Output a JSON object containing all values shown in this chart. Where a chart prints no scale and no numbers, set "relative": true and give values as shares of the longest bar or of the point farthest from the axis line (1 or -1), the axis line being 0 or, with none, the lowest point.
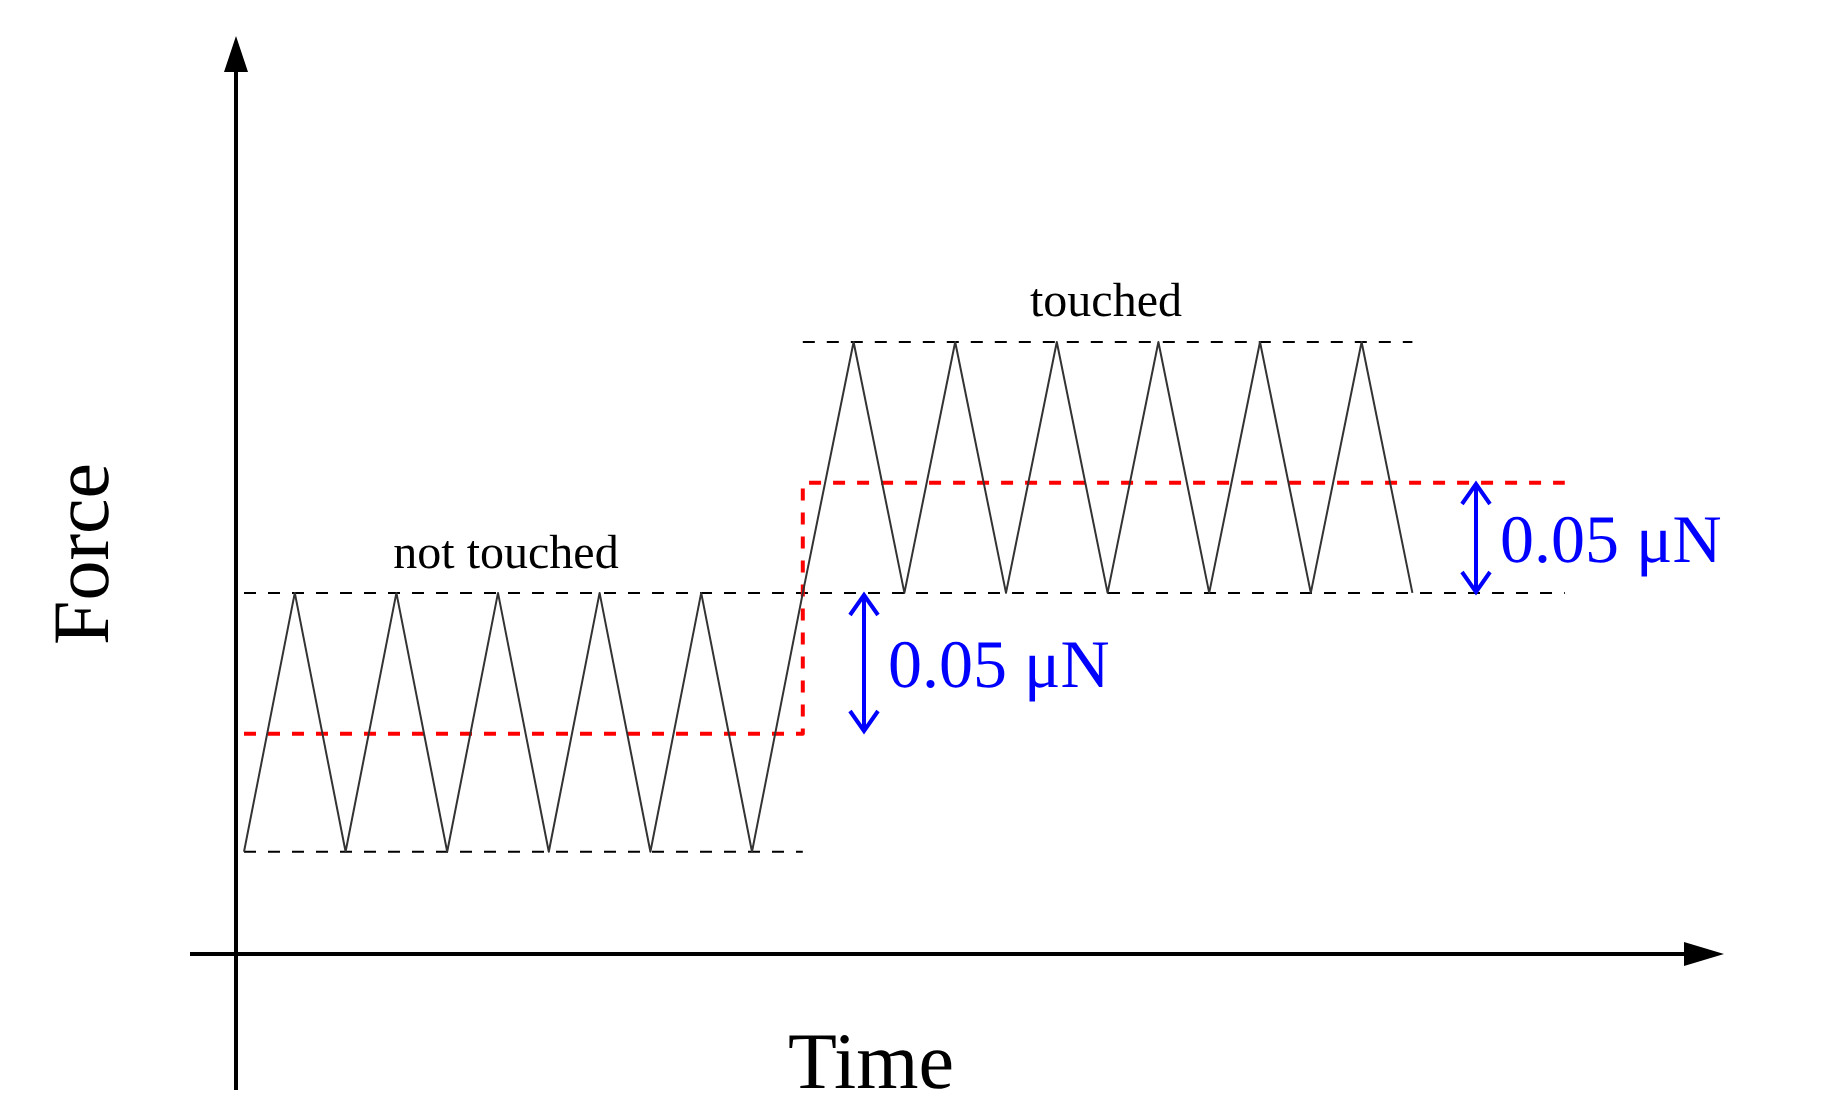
{
  "chart_data": {
    "type": "line",
    "relative": true,
    "xlabel": "Time",
    "ylabel": "Force",
    "categories": [
      null,
      null,
      null,
      null,
      null,
      null,
      null,
      null,
      null,
      null,
      null,
      null,
      null,
      null,
      null,
      null,
      null,
      null,
      null,
      null,
      null,
      null,
      null,
      null,
      null,
      null,
      null,
      null,
      null,
      null
    ],
    "series": [
      {
        "color": "#000000",
        "line_style": "dashed",
        "values": [
          0.167,
          0.167,
          0.167,
          0.167,
          0.167,
          0.167,
          0.167,
          0.167,
          0.167,
          0.167,
          0.167,
          0.167,
          null,
          null,
          null,
          null,
          null,
          null,
          null,
          null,
          null,
          null,
          null,
          null,
          null,
          null,
          null,
          null,
          null,
          null
        ]
      },
      {
        "color": "#000000",
        "line_style": "dashed",
        "values": [
          0.59,
          0.59,
          0.59,
          0.59,
          0.59,
          0.59,
          0.59,
          0.59,
          0.59,
          0.59,
          0.59,
          0.59,
          0.59,
          0.59,
          0.59,
          0.59,
          0.59,
          0.59,
          0.59,
          0.59,
          0.59,
          0.59,
          0.59,
          0.59,
          0.59,
          0.59,
          0.59,
          null,
          null,
          null
        ]
      },
      {
        "color": "#000000",
        "line_style": "dashed",
        "values": [
          null,
          null,
          null,
          null,
          null,
          null,
          null,
          null,
          null,
          null,
          null,
          1,
          1,
          1,
          1,
          1,
          1,
          1,
          1,
          1,
          1,
          1,
          1,
          1,
          null,
          null,
          null,
          null,
          null,
          null
        ]
      },
      {
        "type": "step",
        "color": "#ff0000",
        "line_style": "dashed",
        "values": [
          0.36,
          0.36,
          0.36,
          0.36,
          0.36,
          0.36,
          0.36,
          0.36,
          0.36,
          0.36,
          0.36,
          0.77,
          0.77,
          0.77,
          0.77,
          0.77,
          0.77,
          0.77,
          0.77,
          0.77,
          0.77,
          0.77,
          0.77,
          0.77,
          0.77,
          0.77,
          0.77,
          null,
          null,
          null
        ]
      },
      {
        "color": "#333333",
        "line_style": "solid",
        "values": [
          0.167,
          0.59,
          0.167,
          0.59,
          0.167,
          0.59,
          0.167,
          0.59,
          0.167,
          0.59,
          0.167,
          0.59,
          1,
          0.59,
          1,
          0.59,
          1,
          0.59,
          1,
          0.59,
          1,
          0.59,
          1,
          0.59,
          null,
          null,
          null,
          null,
          null,
          null
        ]
      }
    ],
    "annotations": [
      "not touched",
      "touched",
      "0.05 μN",
      "0.05 μN"
    ]
  }
}
